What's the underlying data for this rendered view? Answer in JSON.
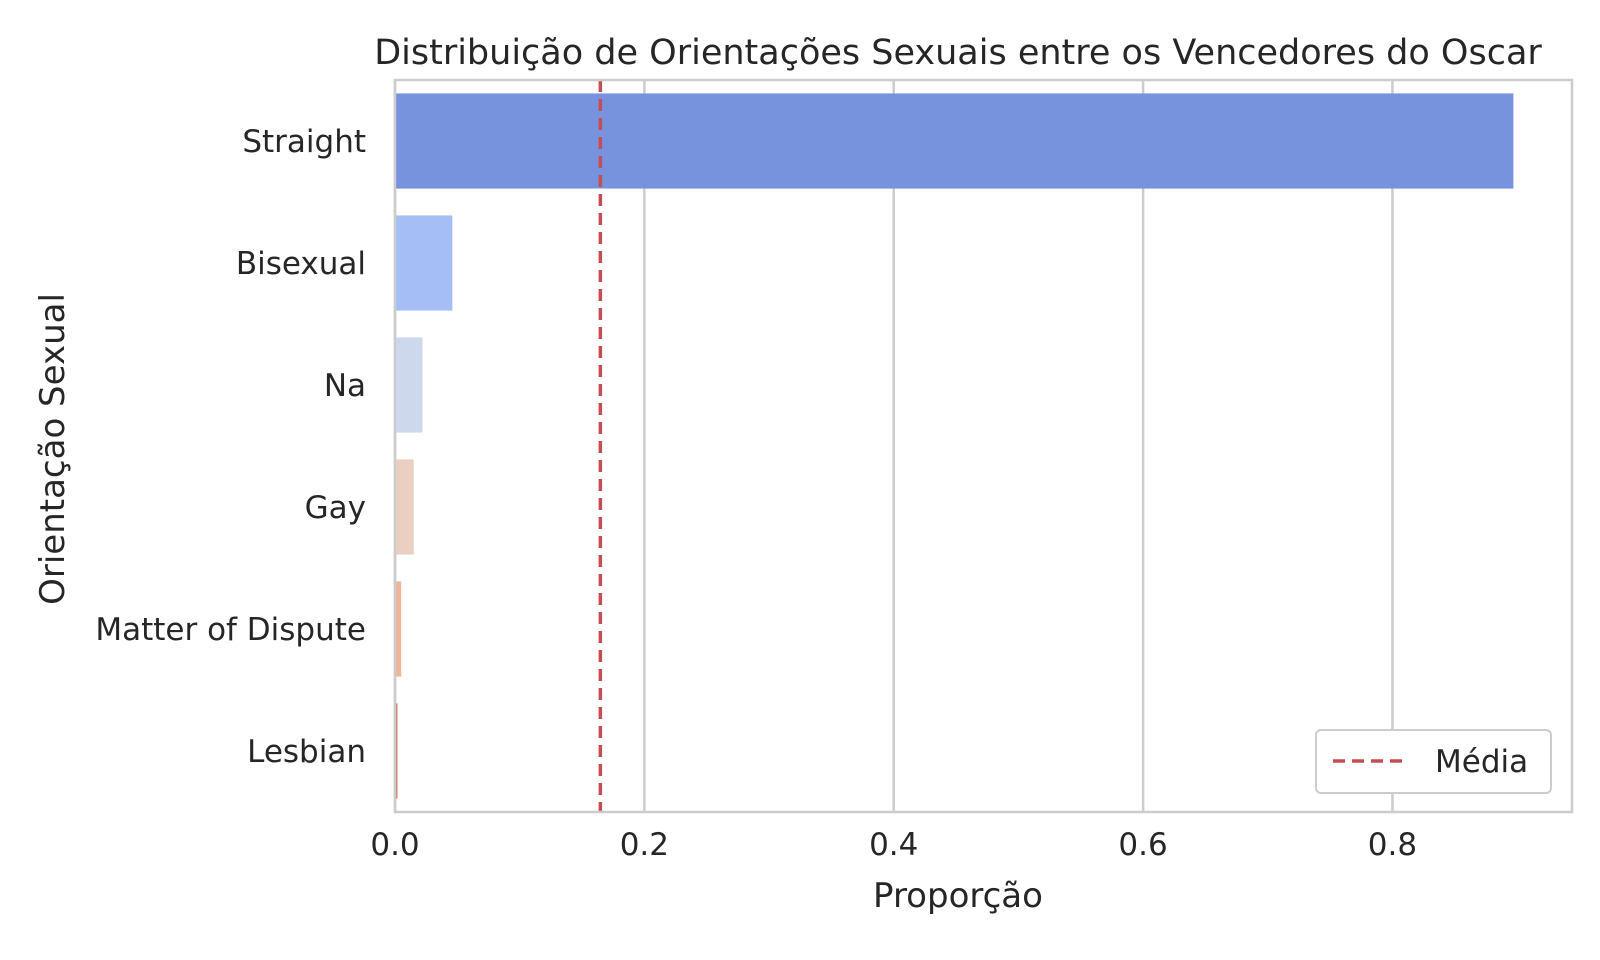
{
  "chart_data": {
    "type": "bar",
    "orientation": "horizontal",
    "title": "Distribuição de Orientações Sexuais entre os Vencedores do Oscar",
    "xlabel": "Proporção",
    "ylabel": "Orientação Sexual",
    "categories": [
      "Straight",
      "Bisexual",
      "Na",
      "Gay",
      "Matter of Dispute",
      "Lesbian"
    ],
    "values": [
      0.897,
      0.046,
      0.022,
      0.015,
      0.005,
      0.002
    ],
    "colors": [
      "#7793dd",
      "#a5bef5",
      "#cdd8ec",
      "#ebd0c2",
      "#f0b699",
      "#cb7b69"
    ],
    "xlim": [
      0,
      0.944
    ],
    "xticks": [
      0.0,
      0.2,
      0.4,
      0.6,
      0.8
    ],
    "xtick_labels": [
      "0.0",
      "0.2",
      "0.4",
      "0.6",
      "0.8"
    ],
    "grid": "vertical",
    "mean_line": {
      "value": 0.1647,
      "label": "Média",
      "color": "#c44e52",
      "style": "dashed"
    },
    "legend_position": "lower-right"
  }
}
